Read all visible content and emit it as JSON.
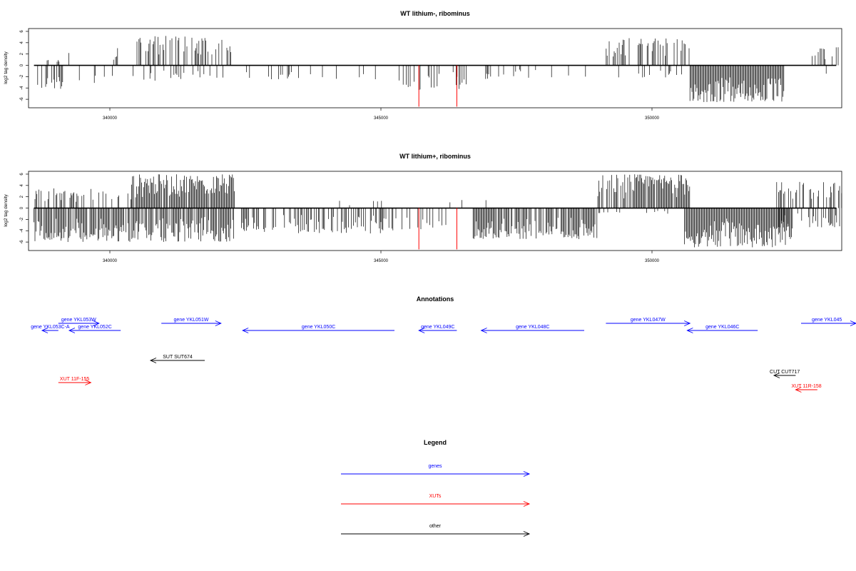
{
  "chart_data": [
    {
      "type": "bar",
      "title": "WT lithium-, ribominus",
      "ylabel": "log2 tag density",
      "xlabel": "",
      "xlim": [
        338500,
        353500
      ],
      "ylim": [
        -7.5,
        6.5
      ],
      "x_ticks": [
        340000,
        345000,
        350000
      ],
      "x_tick_labels": [
        "340000",
        "345000",
        "350000"
      ],
      "y_ticks": [
        -6,
        -4,
        -2,
        0,
        2,
        4,
        6
      ],
      "y_tick_labels": [
        "-6",
        "-4",
        "-2",
        "0",
        "2",
        "4",
        "6"
      ],
      "profile": [
        {
          "x0": 338650,
          "x1": 339150,
          "value": -4.2,
          "density": 0.55
        },
        {
          "x0": 338750,
          "x1": 339150,
          "value": 1.1,
          "density": 0.15
        },
        {
          "x0": 339150,
          "x1": 339400,
          "value": 2.8,
          "density": 0.05
        },
        {
          "x0": 339400,
          "x1": 340200,
          "value": -3.2,
          "density": 0.18
        },
        {
          "x0": 339700,
          "x1": 340100,
          "value": 1.0,
          "density": 0.08
        },
        {
          "x0": 340050,
          "x1": 340150,
          "value": 3.4,
          "density": 0.5
        },
        {
          "x0": 340300,
          "x1": 340500,
          "value": -2.0,
          "density": 0.12
        },
        {
          "x0": 340500,
          "x1": 342300,
          "value": 5.3,
          "density": 0.5
        },
        {
          "x0": 340500,
          "x1": 342300,
          "value": -2.8,
          "density": 0.15
        },
        {
          "x0": 342300,
          "x1": 345500,
          "value": -2.5,
          "density": 0.12
        },
        {
          "x0": 345300,
          "x1": 346600,
          "value": -4.5,
          "density": 0.35
        },
        {
          "x0": 346600,
          "x1": 348800,
          "value": -2.5,
          "density": 0.1
        },
        {
          "x0": 349100,
          "x1": 350700,
          "value": 4.8,
          "density": 0.42
        },
        {
          "x0": 349200,
          "x1": 350700,
          "value": -2.2,
          "density": 0.12
        },
        {
          "x0": 350700,
          "x1": 352450,
          "value": -6.6,
          "density": 1.0
        },
        {
          "x0": 352900,
          "x1": 353500,
          "value": 3.2,
          "density": 0.3
        },
        {
          "x0": 352900,
          "x1": 353500,
          "value": -1.8,
          "density": 0.1
        }
      ],
      "markers": [
        345700,
        346400
      ]
    },
    {
      "type": "bar",
      "title": "WT lithium+, ribominus",
      "ylabel": "log2 tag density",
      "xlabel": "",
      "xlim": [
        338500,
        353500
      ],
      "ylim": [
        -7.5,
        6.5
      ],
      "x_ticks": [
        340000,
        345000,
        350000
      ],
      "x_tick_labels": [
        "340000",
        "345000",
        "350000"
      ],
      "y_ticks": [
        -6,
        -4,
        -2,
        0,
        2,
        4,
        6
      ],
      "y_tick_labels": [
        "-6",
        "-4",
        "-2",
        "0",
        "2",
        "4",
        "6"
      ],
      "profile": [
        {
          "x0": 338600,
          "x1": 342300,
          "value": -6.0,
          "density": 0.85
        },
        {
          "x0": 338600,
          "x1": 340400,
          "value": 3.5,
          "density": 0.45
        },
        {
          "x0": 340400,
          "x1": 342300,
          "value": 6.0,
          "density": 0.9
        },
        {
          "x0": 342300,
          "x1": 345000,
          "value": -4.5,
          "density": 0.5
        },
        {
          "x0": 344200,
          "x1": 345100,
          "value": 1.3,
          "density": 0.12
        },
        {
          "x0": 345000,
          "x1": 346200,
          "value": -4.0,
          "density": 0.3
        },
        {
          "x0": 346200,
          "x1": 347000,
          "value": 1.5,
          "density": 0.08
        },
        {
          "x0": 346700,
          "x1": 349000,
          "value": -5.5,
          "density": 0.85
        },
        {
          "x0": 349000,
          "x1": 350700,
          "value": 6.0,
          "density": 0.85
        },
        {
          "x0": 349000,
          "x1": 350600,
          "value": -1.0,
          "density": 0.1
        },
        {
          "x0": 350600,
          "x1": 352600,
          "value": -7.0,
          "density": 1.0
        },
        {
          "x0": 352300,
          "x1": 353500,
          "value": 4.7,
          "density": 0.45
        },
        {
          "x0": 352300,
          "x1": 353500,
          "value": -3.5,
          "density": 0.35
        }
      ],
      "markers": [
        345700,
        346400
      ]
    },
    {
      "type": "table",
      "title": "Annotations",
      "xlim": [
        338500,
        353500
      ],
      "features": [
        {
          "label": "gene YKL053W",
          "category": "genes",
          "start": 339050,
          "end": 339800,
          "strand": "+",
          "row": 0
        },
        {
          "label": "gene YKL053C-A",
          "category": "genes",
          "start": 338750,
          "end": 339050,
          "strand": "-",
          "row": 1
        },
        {
          "label": "gene YKL052C",
          "category": "genes",
          "start": 339250,
          "end": 340200,
          "strand": "-",
          "row": 1
        },
        {
          "label": "gene YKL051W",
          "category": "genes",
          "start": 340950,
          "end": 342050,
          "strand": "+",
          "row": 0
        },
        {
          "label": "gene YKL050C",
          "category": "genes",
          "start": 342450,
          "end": 345250,
          "strand": "-",
          "row": 1
        },
        {
          "label": "gene YKL049C",
          "category": "genes",
          "start": 345700,
          "end": 346400,
          "strand": "-",
          "row": 1
        },
        {
          "label": "gene YKL048C",
          "category": "genes",
          "start": 346850,
          "end": 348750,
          "strand": "-",
          "row": 1
        },
        {
          "label": "gene YKL047W",
          "category": "genes",
          "start": 349150,
          "end": 350700,
          "strand": "+",
          "row": 0
        },
        {
          "label": "gene YKL046C",
          "category": "genes",
          "start": 350650,
          "end": 351950,
          "strand": "-",
          "row": 1
        },
        {
          "label": "gene YKL045",
          "category": "genes",
          "start": 352750,
          "end": 354000,
          "strand": "+",
          "row": 0
        },
        {
          "label": "SUT SUT674",
          "category": "other",
          "start": 340750,
          "end": 341750,
          "strand": "-",
          "row": 3
        },
        {
          "label": "CUT CUT717",
          "category": "other",
          "start": 352250,
          "end": 352650,
          "strand": "-",
          "row": 4
        },
        {
          "label": "XUT 11F-155",
          "category": "XUTs",
          "start": 339050,
          "end": 339650,
          "strand": "+",
          "row": 5
        },
        {
          "label": "XUT 11R-158",
          "category": "XUTs",
          "start": 352650,
          "end": 353050,
          "strand": "-",
          "row": 6
        }
      ]
    },
    {
      "type": "table",
      "title": "Legend",
      "entries": [
        {
          "label": "genes",
          "color": "#0000ff"
        },
        {
          "label": "XUTs",
          "color": "#ff0000"
        },
        {
          "label": "other",
          "color": "#000000"
        }
      ]
    }
  ]
}
